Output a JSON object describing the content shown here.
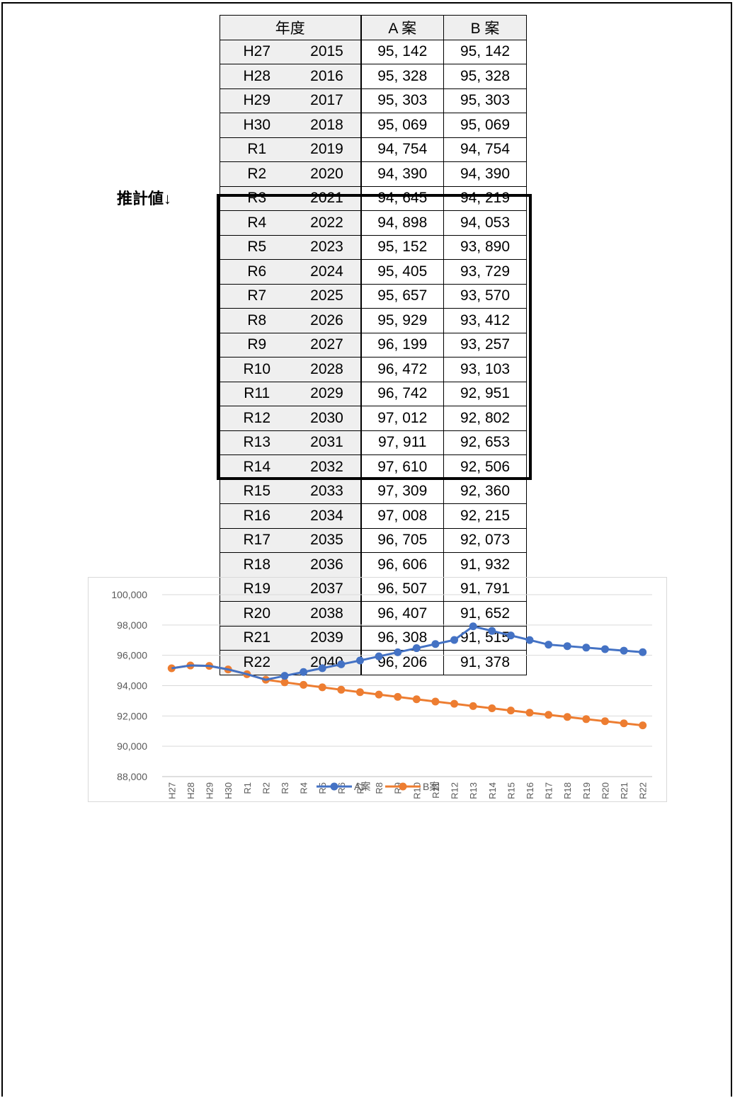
{
  "estimate_label": "推計値↓",
  "table": {
    "header": {
      "year": "年度",
      "a": "A 案",
      "b": "B 案"
    },
    "rows": [
      {
        "wa": "H27",
        "year": "2015",
        "a": "95, 142",
        "b": "95, 142"
      },
      {
        "wa": "H28",
        "year": "2016",
        "a": "95, 328",
        "b": "95, 328"
      },
      {
        "wa": "H29",
        "year": "2017",
        "a": "95, 303",
        "b": "95, 303"
      },
      {
        "wa": "H30",
        "year": "2018",
        "a": "95, 069",
        "b": "95, 069"
      },
      {
        "wa": "R1",
        "year": "2019",
        "a": "94, 754",
        "b": "94, 754"
      },
      {
        "wa": "R2",
        "year": "2020",
        "a": "94, 390",
        "b": "94, 390"
      },
      {
        "wa": "R3",
        "year": "2021",
        "a": "94, 645",
        "b": "94, 219"
      },
      {
        "wa": "R4",
        "year": "2022",
        "a": "94, 898",
        "b": "94, 053"
      },
      {
        "wa": "R5",
        "year": "2023",
        "a": "95, 152",
        "b": "93, 890"
      },
      {
        "wa": "R6",
        "year": "2024",
        "a": "95, 405",
        "b": "93, 729"
      },
      {
        "wa": "R7",
        "year": "2025",
        "a": "95, 657",
        "b": "93, 570"
      },
      {
        "wa": "R8",
        "year": "2026",
        "a": "95, 929",
        "b": "93, 412"
      },
      {
        "wa": "R9",
        "year": "2027",
        "a": "96, 199",
        "b": "93, 257"
      },
      {
        "wa": "R10",
        "year": "2028",
        "a": "96, 472",
        "b": "93, 103"
      },
      {
        "wa": "R11",
        "year": "2029",
        "a": "96, 742",
        "b": "92, 951"
      },
      {
        "wa": "R12",
        "year": "2030",
        "a": "97, 012",
        "b": "92, 802"
      },
      {
        "wa": "R13",
        "year": "2031",
        "a": "97, 911",
        "b": "92, 653"
      },
      {
        "wa": "R14",
        "year": "2032",
        "a": "97, 610",
        "b": "92, 506"
      },
      {
        "wa": "R15",
        "year": "2033",
        "a": "97, 309",
        "b": "92, 360"
      },
      {
        "wa": "R16",
        "year": "2034",
        "a": "97, 008",
        "b": "92, 215"
      },
      {
        "wa": "R17",
        "year": "2035",
        "a": "96, 705",
        "b": "92, 073"
      },
      {
        "wa": "R18",
        "year": "2036",
        "a": "96, 606",
        "b": "91, 932"
      },
      {
        "wa": "R19",
        "year": "2037",
        "a": "96, 507",
        "b": "91, 791"
      },
      {
        "wa": "R20",
        "year": "2038",
        "a": "96, 407",
        "b": "91, 652"
      },
      {
        "wa": "R21",
        "year": "2039",
        "a": "96, 308",
        "b": "91, 515"
      },
      {
        "wa": "R22",
        "year": "2040",
        "a": "96, 206",
        "b": "91, 378"
      }
    ]
  },
  "chart_data": {
    "type": "line",
    "categories": [
      "H27",
      "H28",
      "H29",
      "H30",
      "R1",
      "R2",
      "R3",
      "R4",
      "R5",
      "R6",
      "R7",
      "R8",
      "R9",
      "R10",
      "R11",
      "R12",
      "R13",
      "R14",
      "R15",
      "R16",
      "R17",
      "R18",
      "R19",
      "R20",
      "R21",
      "R22"
    ],
    "series": [
      {
        "name": "A案",
        "color": "#4472c4",
        "values": [
          95142,
          95328,
          95303,
          95069,
          94754,
          94390,
          94645,
          94898,
          95152,
          95405,
          95657,
          95929,
          96199,
          96472,
          96742,
          97012,
          97911,
          97610,
          97309,
          97008,
          96705,
          96606,
          96507,
          96407,
          96308,
          96206
        ]
      },
      {
        "name": "B案",
        "color": "#ed7d31",
        "values": [
          95142,
          95328,
          95303,
          95069,
          94754,
          94390,
          94219,
          94053,
          93890,
          93729,
          93570,
          93412,
          93257,
          93103,
          92951,
          92802,
          92653,
          92506,
          92360,
          92215,
          92073,
          91932,
          91791,
          91652,
          91515,
          91378
        ]
      }
    ],
    "ylim": [
      88000,
      100000
    ],
    "yticks": [
      "88,000",
      "90,000",
      "92,000",
      "94,000",
      "96,000",
      "98,000",
      "100,000"
    ],
    "grid": true,
    "legend": "bottom"
  }
}
